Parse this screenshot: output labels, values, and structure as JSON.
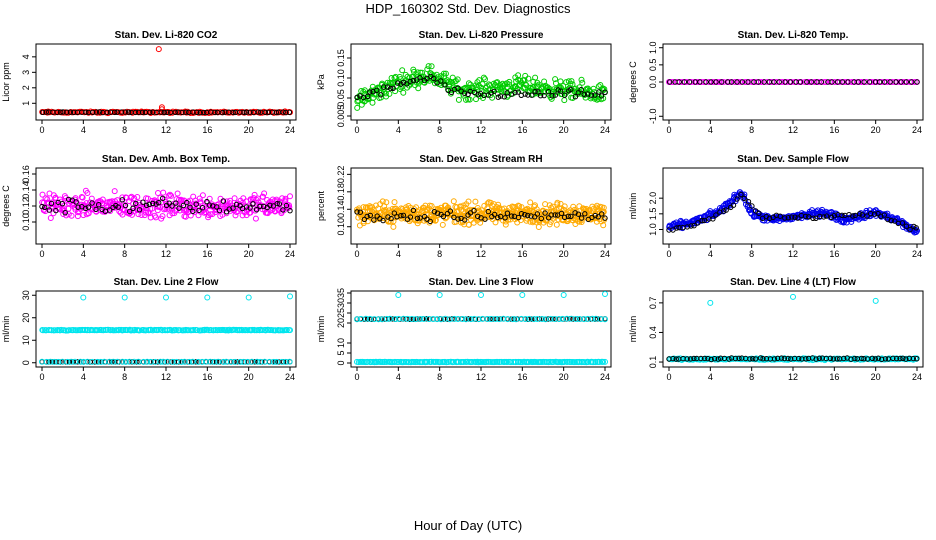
{
  "title": "HDP_160302  Std. Dev. Diagnostics",
  "xlabel": "Hour of Day (UTC)",
  "colors": {
    "axis": "#000000",
    "overlay": "#000000"
  },
  "chart_data": [
    {
      "type": "scatter",
      "title": "Stan. Dev. Li-820 CO2",
      "ylabel": "Licor ppm",
      "xlim": [
        0,
        24
      ],
      "ylim": [
        0.05,
        4.7
      ],
      "xticks": [
        "0",
        "4",
        "8",
        "12",
        "16",
        "20",
        "24"
      ],
      "yticks": [
        "1",
        "2",
        "3",
        "4"
      ],
      "color": "#ff0000",
      "series": [
        {
          "name": "samples",
          "base": 0.42,
          "noise": 0.07,
          "n": 150,
          "outliers": [
            [
              11.3,
              4.5
            ],
            [
              11.6,
              0.75
            ],
            [
              11.6,
              0.62
            ]
          ]
        },
        {
          "name": "average",
          "base": 0.42,
          "noise": 0.03,
          "n": 70
        }
      ]
    },
    {
      "type": "scatter",
      "title": "Stan. Dev. Li-820 Pressure",
      "ylabel": "kPa",
      "xlim": [
        0,
        24
      ],
      "ylim": [
        0.0,
        0.18
      ],
      "xticks": [
        "0",
        "4",
        "8",
        "12",
        "16",
        "20",
        "24"
      ],
      "yticks": [
        "0.005",
        "0.05",
        "0.10",
        "0.15"
      ],
      "color": "#00cc00",
      "series": [
        {
          "name": "samples",
          "base": 0.075,
          "noise": 0.035,
          "n": 360,
          "profile": [
            [
              0,
              0.04
            ],
            [
              4,
              0.09
            ],
            [
              7,
              0.11
            ],
            [
              10,
              0.07
            ],
            [
              16,
              0.08
            ],
            [
              24,
              0.06
            ]
          ]
        },
        {
          "name": "average",
          "base": 0.07,
          "noise": 0.015,
          "n": 75,
          "profile": [
            [
              0,
              0.05
            ],
            [
              4,
              0.08
            ],
            [
              7,
              0.1
            ],
            [
              10,
              0.06
            ],
            [
              24,
              0.06
            ]
          ]
        }
      ]
    },
    {
      "type": "scatter",
      "title": "Stan. Dev. Li-820 Temp.",
      "ylabel": "degrees C",
      "xlim": [
        0,
        24
      ],
      "ylim": [
        -1.05,
        1.05
      ],
      "xticks": [
        "0",
        "4",
        "8",
        "12",
        "16",
        "20",
        "24"
      ],
      "yticks": [
        "-1.0",
        "0.0",
        "0.5",
        "1.0"
      ],
      "color": "#ff00ff",
      "series": [
        {
          "name": "samples",
          "base": 0.0,
          "noise": 0.0,
          "n": 100
        },
        {
          "name": "average",
          "base": 0.0,
          "noise": 0.0,
          "n": 48
        }
      ]
    },
    {
      "type": "scatter",
      "title": "Stan. Dev. Amb. Box Temp.",
      "ylabel": "degrees C",
      "xlim": [
        0,
        24
      ],
      "ylim": [
        0.075,
        0.165
      ],
      "xticks": [
        "0",
        "4",
        "8",
        "12",
        "16",
        "20",
        "24"
      ],
      "yticks": [
        "0.10",
        "0.12",
        "0.14",
        "0.16"
      ],
      "color": "#ff00ff",
      "series": [
        {
          "name": "samples",
          "base": 0.12,
          "noise": 0.022,
          "n": 380
        },
        {
          "name": "average",
          "base": 0.12,
          "noise": 0.013,
          "n": 75
        }
      ]
    },
    {
      "type": "scatter",
      "title": "Stan. Dev. Gas Stream RH",
      "ylabel": "percent",
      "xlim": [
        0,
        24
      ],
      "ylim": [
        0.065,
        0.23
      ],
      "xticks": [
        "0",
        "4",
        "8",
        "12",
        "16",
        "20",
        "24"
      ],
      "yticks": [
        "0.10",
        "0.14",
        "0.18",
        "0.22"
      ],
      "color": "#ffaa00",
      "series": [
        {
          "name": "samples",
          "base": 0.13,
          "noise": 0.035,
          "n": 520
        },
        {
          "name": "average",
          "base": 0.125,
          "noise": 0.018,
          "n": 75
        }
      ]
    },
    {
      "type": "scatter",
      "title": "Stan. Dev. Sample Flow",
      "ylabel": "ml/min",
      "xlim": [
        0,
        24
      ],
      "ylim": [
        0.6,
        2.9
      ],
      "xticks": [
        "0",
        "4",
        "8",
        "12",
        "16",
        "20",
        "24"
      ],
      "yticks": [
        "1.0",
        "1.5",
        "2.0"
      ],
      "color": "#0000ee",
      "series": [
        {
          "name": "samples",
          "base": 1.3,
          "noise": 0.16,
          "n": 360,
          "profile": [
            [
              0,
              1.05
            ],
            [
              3,
              1.3
            ],
            [
              5,
              1.6
            ],
            [
              7,
              2.2
            ],
            [
              8,
              1.5
            ],
            [
              10,
              1.3
            ],
            [
              15,
              1.55
            ],
            [
              17,
              1.3
            ],
            [
              20,
              1.55
            ],
            [
              22,
              1.3
            ],
            [
              24,
              0.9
            ]
          ]
        },
        {
          "name": "average",
          "base": 1.25,
          "noise": 0.1,
          "n": 70,
          "profile": [
            [
              0,
              1.0
            ],
            [
              3,
              1.2
            ],
            [
              6,
              1.7
            ],
            [
              7,
              2.1
            ],
            [
              9,
              1.4
            ],
            [
              15,
              1.4
            ],
            [
              20,
              1.5
            ],
            [
              24,
              1.0
            ]
          ]
        }
      ]
    },
    {
      "type": "scatter",
      "title": "Stan. Dev. Line 2 Flow",
      "ylabel": "ml/min",
      "xlim": [
        0,
        24
      ],
      "ylim": [
        -1,
        31
      ],
      "xticks": [
        "0",
        "4",
        "8",
        "12",
        "16",
        "20",
        "24"
      ],
      "yticks": [
        "0",
        "10",
        "20",
        "30"
      ],
      "color": "#00e5ee",
      "series": [
        {
          "name": "samples",
          "base": 14.5,
          "noise": 0.25,
          "n": 200,
          "outliers": [
            [
              4,
              29
            ],
            [
              8,
              29
            ],
            [
              12,
              29
            ],
            [
              16,
              29
            ],
            [
              20,
              29
            ],
            [
              24,
              29.5
            ]
          ]
        },
        {
          "name": "average",
          "base": 0.4,
          "noise": 0.05,
          "n": 72
        },
        {
          "name": "samples-low",
          "base": 0.4,
          "noise": 0.05,
          "n": 60
        }
      ]
    },
    {
      "type": "scatter",
      "title": "Stan. Dev. Line 3 Flow",
      "ylabel": "ml/min",
      "xlim": [
        0,
        24
      ],
      "ylim": [
        -1,
        35
      ],
      "xticks": [
        "0",
        "4",
        "8",
        "12",
        "16",
        "20",
        "24"
      ],
      "yticks": [
        "0",
        "5",
        "10",
        "20",
        "25",
        "30",
        "35"
      ],
      "color": "#00e5ee",
      "series": [
        {
          "name": "samples",
          "base": 0.5,
          "noise": 0.15,
          "n": 200,
          "outliers": [
            [
              4,
              34
            ],
            [
              8,
              34
            ],
            [
              12,
              34
            ],
            [
              16,
              34
            ],
            [
              20,
              34
            ],
            [
              24,
              34.5
            ]
          ]
        },
        {
          "name": "average",
          "base": 22,
          "noise": 0.2,
          "n": 72
        },
        {
          "name": "samples-high",
          "base": 22,
          "noise": 0.2,
          "n": 60
        }
      ]
    },
    {
      "type": "scatter",
      "title": "Stan. Dev. Line 4 (LT) Flow",
      "ylabel": "ml/min",
      "xlim": [
        0,
        24
      ],
      "ylim": [
        0.07,
        0.8
      ],
      "xticks": [
        "0",
        "4",
        "8",
        "12",
        "16",
        "20",
        "24"
      ],
      "yticks": [
        "0.1",
        "0.4",
        "0.7"
      ],
      "color": "#00e5ee",
      "series": [
        {
          "name": "samples",
          "base": 0.13,
          "noise": 0.012,
          "n": 200,
          "outliers": [
            [
              4,
              0.7
            ],
            [
              12,
              0.76
            ],
            [
              20,
              0.72
            ]
          ]
        },
        {
          "name": "average",
          "base": 0.135,
          "noise": 0.01,
          "n": 72
        }
      ]
    }
  ]
}
